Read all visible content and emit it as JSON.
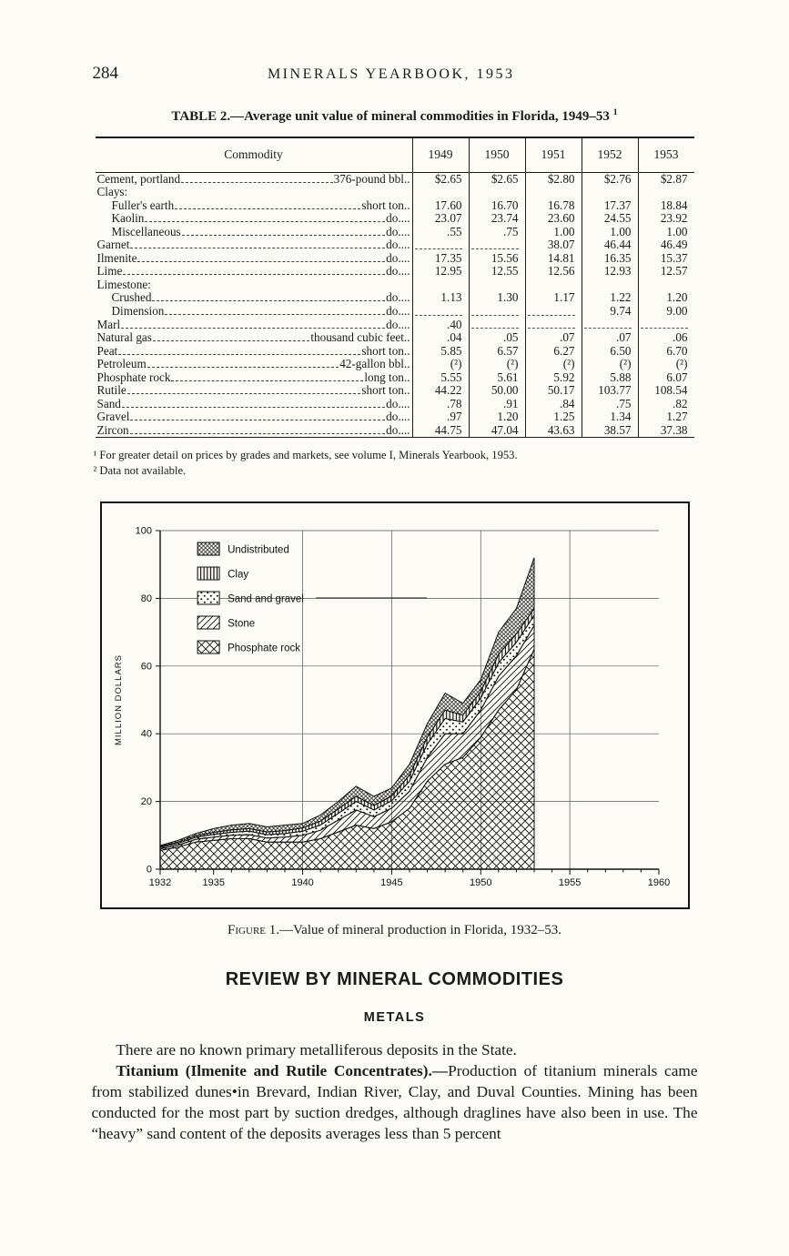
{
  "page": {
    "page_number": "284",
    "running_head": "MINERALS YEARBOOK, 1953"
  },
  "table": {
    "title": "TABLE 2.—Average unit value of mineral commodities in Florida, 1949–53",
    "title_sup": "1",
    "columns": [
      "Commodity",
      "1949",
      "1950",
      "1951",
      "1952",
      "1953"
    ],
    "rows": [
      {
        "label": "Cement, portland",
        "unit": "376-pound bbl..",
        "indent": 0,
        "values": [
          "$2.65",
          "$2.65",
          "$2.80",
          "$2.76",
          "$2.87"
        ]
      },
      {
        "label": "Clays:",
        "group": true
      },
      {
        "label": "Fuller's earth",
        "unit": "short ton..",
        "indent": 1,
        "values": [
          "17.60",
          "16.70",
          "16.78",
          "17.37",
          "18.84"
        ]
      },
      {
        "label": "Kaolin",
        "unit": "do....",
        "indent": 1,
        "values": [
          "23.07",
          "23.74",
          "23.60",
          "24.55",
          "23.92"
        ]
      },
      {
        "label": "Miscellaneous",
        "unit": "do....",
        "indent": 1,
        "values": [
          ".55",
          ".75",
          "1.00",
          "1.00",
          "1.00"
        ]
      },
      {
        "label": "Garnet",
        "unit": "do....",
        "indent": 0,
        "values": [
          null,
          null,
          "38.07",
          "46.44",
          "46.49"
        ]
      },
      {
        "label": "Ilmenite",
        "unit": "do....",
        "indent": 0,
        "values": [
          "17.35",
          "15.56",
          "14.81",
          "16.35",
          "15.37"
        ]
      },
      {
        "label": "Lime",
        "unit": "do....",
        "indent": 0,
        "values": [
          "12.95",
          "12.55",
          "12.56",
          "12.93",
          "12.57"
        ]
      },
      {
        "label": "Limestone:",
        "group": true
      },
      {
        "label": "Crushed",
        "unit": "do....",
        "indent": 1,
        "values": [
          "1.13",
          "1.30",
          "1.17",
          "1.22",
          "1.20"
        ]
      },
      {
        "label": "Dimension",
        "unit": "do....",
        "indent": 1,
        "values": [
          null,
          null,
          null,
          "9.74",
          "9.00"
        ]
      },
      {
        "label": "Marl",
        "unit": "do....",
        "indent": 0,
        "values": [
          ".40",
          null,
          null,
          null,
          null
        ]
      },
      {
        "label": "Natural gas",
        "unit": "thousand cubic feet..",
        "indent": 0,
        "values": [
          ".04",
          ".05",
          ".07",
          ".07",
          ".06"
        ]
      },
      {
        "label": "Peat",
        "unit": "short ton..",
        "indent": 0,
        "values": [
          "5.85",
          "6.57",
          "6.27",
          "6.50",
          "6.70"
        ]
      },
      {
        "label": "Petroleum",
        "unit": "42-gallon bbl..",
        "indent": 0,
        "values": [
          "(²)",
          "(²)",
          "(²)",
          "(²)",
          "(²)"
        ]
      },
      {
        "label": "Phosphate rock",
        "unit": "long ton..",
        "indent": 0,
        "values": [
          "5.55",
          "5.61",
          "5.92",
          "5.88",
          "6.07"
        ]
      },
      {
        "label": "Rutile",
        "unit": "short ton..",
        "indent": 0,
        "values": [
          "44.22",
          "50.00",
          "50.17",
          "103.77",
          "108.54"
        ]
      },
      {
        "label": "Sand",
        "unit": "do....",
        "indent": 0,
        "values": [
          ".78",
          ".91",
          ".84",
          ".75",
          ".82"
        ]
      },
      {
        "label": "Gravel",
        "unit": "do....",
        "indent": 0,
        "values": [
          ".97",
          "1.20",
          "1.25",
          "1.34",
          "1.27"
        ]
      },
      {
        "label": "Zircon",
        "unit": "do....",
        "indent": 0,
        "values": [
          "44.75",
          "47.04",
          "43.63",
          "38.57",
          "37.38"
        ]
      }
    ],
    "footnotes": [
      "¹ For greater detail on prices by grades and markets, see volume I, Minerals Yearbook, 1953.",
      "² Data not available."
    ]
  },
  "figure": {
    "caption_label": "Figure",
    "caption_text": " 1.—Value of mineral production in Florida, 1932–53."
  },
  "chart_data": {
    "type": "area",
    "stacked": true,
    "title": "",
    "xlabel": "",
    "ylabel": "MILLION DOLLARS",
    "xlim": [
      1932,
      1960
    ],
    "ylim": [
      0,
      100
    ],
    "yticks": [
      0,
      20,
      40,
      60,
      80,
      100
    ],
    "xticks": [
      1932,
      1935,
      1940,
      1945,
      1950,
      1955,
      1960
    ],
    "grid_vlines": [
      1940,
      1945,
      1950,
      1955
    ],
    "grid": true,
    "legend_position": "top-left",
    "x": [
      1932,
      1933,
      1934,
      1935,
      1936,
      1937,
      1938,
      1939,
      1940,
      1941,
      1942,
      1943,
      1944,
      1945,
      1946,
      1947,
      1948,
      1949,
      1950,
      1951,
      1952,
      1953
    ],
    "series": [
      {
        "name": "Phosphate rock",
        "pattern": "crosshatch",
        "values": [
          5.5,
          6.5,
          8,
          8.5,
          9,
          9,
          8,
          8,
          8,
          9,
          11,
          13,
          12,
          14,
          18,
          26,
          31,
          33,
          39,
          47,
          53,
          65
        ]
      },
      {
        "name": "Stone",
        "pattern": "diagonal",
        "values": [
          0.5,
          0.6,
          0.8,
          1,
          1,
          1.2,
          1.2,
          1.5,
          2,
          2.5,
          3.5,
          4.5,
          3.5,
          4,
          5,
          7,
          9,
          7,
          8,
          10,
          10,
          7
        ]
      },
      {
        "name": "Sand and gravel",
        "pattern": "dots",
        "values": [
          0.4,
          0.5,
          0.6,
          0.8,
          0.9,
          1,
          1,
          1,
          1.2,
          1.5,
          2,
          2.5,
          2,
          2.2,
          3,
          4,
          4.5,
          3.5,
          3.5,
          4,
          4,
          3
        ]
      },
      {
        "name": "Clay",
        "pattern": "vertical-lines",
        "values": [
          0.3,
          0.4,
          0.5,
          0.6,
          0.7,
          0.8,
          0.8,
          0.9,
          1,
          1.2,
          1.3,
          1.5,
          1.3,
          1.4,
          1.8,
          2,
          2.5,
          2,
          2,
          2.5,
          2.5,
          2
        ]
      },
      {
        "name": "Undistributed",
        "pattern": "stipple",
        "values": [
          0.3,
          0.5,
          0.6,
          1.1,
          1.4,
          1.5,
          1.5,
          1.6,
          1.3,
          1.8,
          2.2,
          3,
          2.7,
          2.4,
          3.2,
          4,
          5,
          3.5,
          3.5,
          6.5,
          7.5,
          15
        ]
      }
    ],
    "legend_order": [
      "Undistributed",
      "Clay",
      "Sand and gravel",
      "Stone",
      "Phosphate rock"
    ]
  },
  "section": {
    "heading": "REVIEW BY MINERAL COMMODITIES",
    "subheading": "METALS",
    "paragraph1": "There are no known primary metalliferous deposits in the State.",
    "paragraph2_lead": "Titanium (Ilmenite and Rutile Concentrates).—",
    "paragraph2_text": "Production of titanium minerals came from stabilized dunes•in Brevard, Indian River, Clay, and Duval Counties.  Mining has been conducted for the most part by suction dredges, although draglines have also been in use.  The “heavy” sand content of the deposits averages less than 5 percent"
  }
}
